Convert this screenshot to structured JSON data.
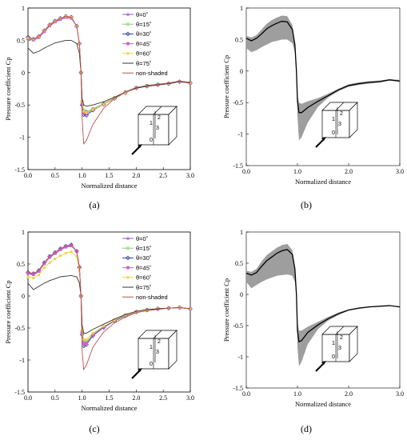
{
  "legend": [
    "θ=0˚",
    "θ=15˚",
    "θ=30˚",
    "θ=45˚",
    "θ=60˚",
    "θ=75˚",
    "non-shaded"
  ],
  "series_colors": [
    "#9b59d0",
    "#7fd36b",
    "#2a3fa5",
    "#d45ed4",
    "#f0d23a",
    "#333333",
    "#c0504d"
  ],
  "cube_labels_top": [
    "2",
    "1",
    "3",
    "0"
  ],
  "cube_labels_bottom": [
    "2",
    "1",
    "3",
    "0"
  ],
  "chart_data": [
    {
      "type": "line",
      "panel_label": "(a)",
      "xlabel": "Normalized distance",
      "ylabel": "Pressure coefficient Cp",
      "xlim": [
        0,
        3
      ],
      "ylim": [
        -1.5,
        1
      ],
      "xticks": [
        "0.0",
        "0.5",
        "1.0",
        "1.5",
        "2.0",
        "2.5",
        "3.0"
      ],
      "yticks": [
        "1",
        "0.5",
        "0",
        "-0.5",
        "-1",
        "-1.5"
      ],
      "x": [
        0,
        0.1,
        0.2,
        0.3,
        0.4,
        0.5,
        0.6,
        0.7,
        0.8,
        0.9,
        0.95,
        0.98,
        1.0,
        1.03,
        1.08,
        1.2,
        1.4,
        1.6,
        1.8,
        2.0,
        2.2,
        2.4,
        2.6,
        2.8,
        3.0
      ],
      "series": [
        {
          "name": "θ=0˚",
          "values": [
            0.52,
            0.5,
            0.54,
            0.63,
            0.72,
            0.78,
            0.82,
            0.85,
            0.84,
            0.72,
            0.45,
            0.0,
            -0.45,
            -0.58,
            -0.6,
            -0.56,
            -0.48,
            -0.39,
            -0.3,
            -0.23,
            -0.2,
            -0.18,
            -0.17,
            -0.14,
            -0.16
          ]
        },
        {
          "name": "θ=15˚",
          "values": [
            0.52,
            0.51,
            0.55,
            0.64,
            0.73,
            0.79,
            0.83,
            0.86,
            0.85,
            0.72,
            0.45,
            0.0,
            -0.45,
            -0.58,
            -0.6,
            -0.56,
            -0.48,
            -0.39,
            -0.3,
            -0.23,
            -0.2,
            -0.18,
            -0.17,
            -0.14,
            -0.16
          ]
        },
        {
          "name": "θ=30˚",
          "values": [
            0.55,
            0.52,
            0.56,
            0.65,
            0.74,
            0.8,
            0.84,
            0.87,
            0.86,
            0.72,
            0.45,
            0.0,
            -0.5,
            -0.65,
            -0.66,
            -0.58,
            -0.49,
            -0.4,
            -0.31,
            -0.24,
            -0.21,
            -0.19,
            -0.17,
            -0.14,
            -0.16
          ]
        },
        {
          "name": "θ=45˚",
          "values": [
            0.53,
            0.51,
            0.55,
            0.64,
            0.73,
            0.79,
            0.83,
            0.86,
            0.85,
            0.72,
            0.45,
            0.0,
            -0.48,
            -0.62,
            -0.63,
            -0.57,
            -0.49,
            -0.4,
            -0.31,
            -0.24,
            -0.21,
            -0.19,
            -0.17,
            -0.14,
            -0.16
          ]
        },
        {
          "name": "θ=60˚",
          "values": [
            0.54,
            0.52,
            0.56,
            0.65,
            0.74,
            0.8,
            0.84,
            0.87,
            0.86,
            0.72,
            0.45,
            0.0,
            -0.46,
            -0.6,
            -0.62,
            -0.57,
            -0.49,
            -0.4,
            -0.31,
            -0.24,
            -0.21,
            -0.19,
            -0.17,
            -0.14,
            -0.16
          ]
        },
        {
          "name": "θ=75˚",
          "values": [
            0.38,
            0.3,
            0.33,
            0.38,
            0.42,
            0.46,
            0.48,
            0.5,
            0.5,
            0.45,
            0.3,
            0.0,
            -0.4,
            -0.5,
            -0.52,
            -0.5,
            -0.45,
            -0.38,
            -0.3,
            -0.24,
            -0.21,
            -0.19,
            -0.17,
            -0.14,
            -0.16
          ]
        },
        {
          "name": "non-shaded",
          "values": [
            0.55,
            0.52,
            0.56,
            0.65,
            0.74,
            0.8,
            0.84,
            0.87,
            0.86,
            0.72,
            0.45,
            0.0,
            -0.7,
            -1.1,
            -1.05,
            -0.8,
            -0.55,
            -0.4,
            -0.3,
            -0.23,
            -0.2,
            -0.18,
            -0.16,
            -0.13,
            -0.15
          ]
        }
      ]
    },
    {
      "type": "area",
      "panel_label": "(b)",
      "xlabel": "Normalized distance",
      "ylabel": "Pressure coefficient Cp",
      "xlim": [
        0,
        3
      ],
      "ylim": [
        -1.5,
        1
      ],
      "xticks": [
        "0.0",
        "1.0",
        "2.0",
        "3.0"
      ],
      "yticks": [
        "1",
        "0.5",
        "0",
        "-0.5",
        "-1",
        "-1.5"
      ],
      "x": [
        0,
        0.1,
        0.2,
        0.3,
        0.4,
        0.5,
        0.6,
        0.7,
        0.8,
        0.9,
        0.95,
        0.98,
        1.0,
        1.03,
        1.08,
        1.2,
        1.4,
        1.6,
        1.8,
        2.0,
        2.2,
        2.4,
        2.6,
        2.8,
        3.0
      ],
      "mean": [
        0.52,
        0.48,
        0.52,
        0.59,
        0.67,
        0.72,
        0.76,
        0.79,
        0.78,
        0.66,
        0.42,
        0.0,
        -0.47,
        -0.66,
        -0.66,
        -0.58,
        -0.48,
        -0.39,
        -0.3,
        -0.23,
        -0.2,
        -0.18,
        -0.17,
        -0.14,
        -0.16
      ],
      "upper": [
        0.56,
        0.53,
        0.57,
        0.66,
        0.75,
        0.81,
        0.85,
        0.88,
        0.87,
        0.73,
        0.46,
        0.05,
        -0.38,
        -0.5,
        -0.52,
        -0.48,
        -0.43,
        -0.36,
        -0.28,
        -0.21,
        -0.18,
        -0.16,
        -0.15,
        -0.13,
        -0.14
      ],
      "lower": [
        0.36,
        0.3,
        0.33,
        0.38,
        0.42,
        0.46,
        0.48,
        0.5,
        0.5,
        0.44,
        0.3,
        -0.05,
        -0.72,
        -1.1,
        -1.05,
        -0.82,
        -0.57,
        -0.42,
        -0.32,
        -0.25,
        -0.22,
        -0.2,
        -0.18,
        -0.15,
        -0.17
      ]
    },
    {
      "type": "line",
      "panel_label": "(c)",
      "xlabel": "Normalized distance",
      "ylabel": "Pressure coefficient Cp",
      "xlim": [
        0,
        3
      ],
      "ylim": [
        -1.5,
        1
      ],
      "xticks": [
        "0.0",
        "0.5",
        "1.0",
        "1.5",
        "2.0",
        "2.5",
        "3.0"
      ],
      "yticks": [
        "1",
        "0.5",
        "0",
        "-0.5",
        "-1",
        "-1.5"
      ],
      "x": [
        0,
        0.1,
        0.2,
        0.3,
        0.4,
        0.5,
        0.6,
        0.7,
        0.8,
        0.9,
        0.95,
        0.98,
        1.0,
        1.03,
        1.08,
        1.2,
        1.4,
        1.6,
        1.8,
        2.0,
        2.2,
        2.4,
        2.6,
        2.8,
        3.0
      ],
      "series": [
        {
          "name": "θ=0˚",
          "values": [
            0.35,
            0.33,
            0.38,
            0.5,
            0.6,
            0.66,
            0.72,
            0.76,
            0.78,
            0.7,
            0.45,
            0.0,
            -0.55,
            -0.72,
            -0.72,
            -0.6,
            -0.48,
            -0.38,
            -0.3,
            -0.25,
            -0.22,
            -0.2,
            -0.19,
            -0.18,
            -0.2
          ]
        },
        {
          "name": "θ=15˚",
          "values": [
            0.36,
            0.34,
            0.39,
            0.51,
            0.61,
            0.67,
            0.73,
            0.77,
            0.79,
            0.7,
            0.45,
            0.0,
            -0.55,
            -0.72,
            -0.72,
            -0.6,
            -0.48,
            -0.38,
            -0.3,
            -0.25,
            -0.22,
            -0.2,
            -0.19,
            -0.18,
            -0.2
          ]
        },
        {
          "name": "θ=30˚",
          "values": [
            0.37,
            0.35,
            0.4,
            0.52,
            0.62,
            0.68,
            0.74,
            0.78,
            0.8,
            0.7,
            0.45,
            0.0,
            -0.6,
            -0.78,
            -0.76,
            -0.62,
            -0.49,
            -0.39,
            -0.31,
            -0.25,
            -0.22,
            -0.2,
            -0.19,
            -0.18,
            -0.2
          ]
        },
        {
          "name": "θ=45˚",
          "values": [
            0.36,
            0.34,
            0.39,
            0.51,
            0.61,
            0.67,
            0.73,
            0.77,
            0.79,
            0.7,
            0.45,
            0.0,
            -0.57,
            -0.75,
            -0.74,
            -0.61,
            -0.48,
            -0.38,
            -0.3,
            -0.25,
            -0.22,
            -0.2,
            -0.19,
            -0.18,
            -0.2
          ]
        },
        {
          "name": "θ=60˚",
          "values": [
            0.3,
            0.28,
            0.33,
            0.44,
            0.52,
            0.58,
            0.63,
            0.67,
            0.69,
            0.62,
            0.4,
            0.0,
            -0.53,
            -0.68,
            -0.68,
            -0.58,
            -0.47,
            -0.38,
            -0.3,
            -0.25,
            -0.22,
            -0.2,
            -0.19,
            -0.18,
            -0.2
          ]
        },
        {
          "name": "θ=75˚",
          "values": [
            0.2,
            0.1,
            0.15,
            0.2,
            0.24,
            0.27,
            0.3,
            0.31,
            0.32,
            0.3,
            0.2,
            0.0,
            -0.45,
            -0.58,
            -0.58,
            -0.52,
            -0.44,
            -0.36,
            -0.29,
            -0.24,
            -0.21,
            -0.2,
            -0.19,
            -0.18,
            -0.2
          ]
        },
        {
          "name": "non-shaded",
          "values": [
            0.37,
            0.35,
            0.4,
            0.52,
            0.62,
            0.68,
            0.74,
            0.78,
            0.8,
            0.7,
            0.45,
            0.0,
            -0.85,
            -1.15,
            -1.08,
            -0.8,
            -0.56,
            -0.42,
            -0.33,
            -0.26,
            -0.23,
            -0.21,
            -0.19,
            -0.18,
            -0.2
          ]
        }
      ]
    },
    {
      "type": "area",
      "panel_label": "(d)",
      "xlabel": "Normalized distance",
      "ylabel": "Pressure coefficient Cp",
      "xlim": [
        0,
        3
      ],
      "ylim": [
        -1.5,
        1
      ],
      "xticks": [
        "0.0",
        "1.0",
        "2.0",
        "3.0"
      ],
      "yticks": [
        "1",
        "0.5",
        "0",
        "-0.5",
        "-1",
        "-1.5"
      ],
      "x": [
        0,
        0.1,
        0.2,
        0.3,
        0.4,
        0.5,
        0.6,
        0.7,
        0.8,
        0.9,
        0.95,
        0.98,
        1.0,
        1.03,
        1.08,
        1.2,
        1.4,
        1.6,
        1.8,
        2.0,
        2.2,
        2.4,
        2.6,
        2.8,
        3.0
      ],
      "mean": [
        0.34,
        0.31,
        0.35,
        0.45,
        0.54,
        0.6,
        0.66,
        0.7,
        0.72,
        0.64,
        0.41,
        0.0,
        -0.58,
        -0.76,
        -0.74,
        -0.61,
        -0.49,
        -0.39,
        -0.31,
        -0.25,
        -0.22,
        -0.2,
        -0.19,
        -0.18,
        -0.2
      ],
      "upper": [
        0.38,
        0.36,
        0.41,
        0.53,
        0.63,
        0.69,
        0.75,
        0.79,
        0.81,
        0.71,
        0.46,
        0.05,
        -0.45,
        -0.58,
        -0.58,
        -0.52,
        -0.44,
        -0.36,
        -0.29,
        -0.24,
        -0.21,
        -0.2,
        -0.19,
        -0.18,
        -0.19
      ],
      "lower": [
        0.2,
        0.1,
        0.15,
        0.2,
        0.24,
        0.27,
        0.3,
        0.31,
        0.32,
        0.3,
        0.2,
        -0.05,
        -0.85,
        -1.15,
        -1.08,
        -0.8,
        -0.56,
        -0.42,
        -0.33,
        -0.26,
        -0.23,
        -0.21,
        -0.19,
        -0.18,
        -0.21
      ]
    }
  ]
}
